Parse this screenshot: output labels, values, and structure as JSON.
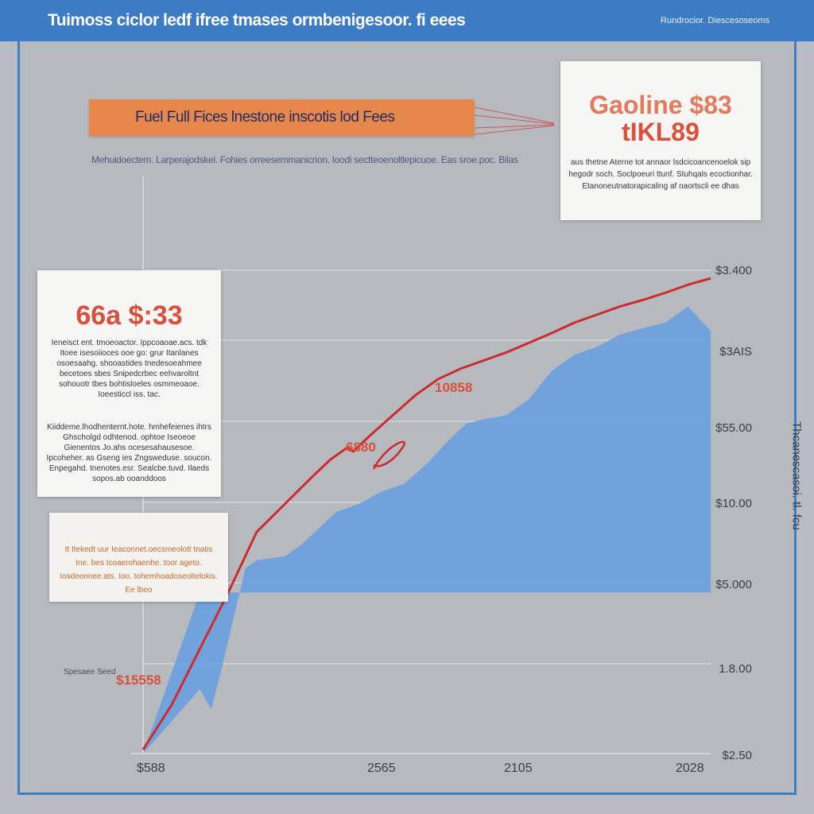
{
  "header": {
    "title": "Tuimoss ciclor ledf ifree tmases ormbenigesoor. fi eees",
    "right_text": "Rundrocior. Diescesoseoms"
  },
  "banner": {
    "label": "Fuel Full Fices lnestone inscotis lod Fees"
  },
  "subtitle": "Mehuidoectem. Larperajodskel. Fohies orreesemmanicrion. Ioodi sectteoenoltlepicuoe. Eas sroe.poc. Bilas",
  "cards": {
    "top_right": {
      "line1": "Gaoline $83",
      "line2": "tIKL89",
      "text": "aus thetne Aterne tot annaor lsdcicoancenoelok sip hegodr soch. Soclpoeuri ttunf. Stuhqals ecoctionhar. Etanoneutnatorapicaling af naortscli ee dhas"
    },
    "mid_left": {
      "big": "66a $:33",
      "text1": "Ieneisct ent. tmoeoactor. Ippcoaoae.acs. tdk Itoee isesoiioces ooe go: grur Itanlanes osoesaahg. shooastides tnedesoeahmee becetoes sbes Snipedcrbec eehvaroltnt sohouotr tbes bohtisloeles osmmeoaoe. Ioeesticcl iss. tac.",
      "text2": "Kiiddeme.lhodhenternt.hote. hmhefeienes ihtrs Ghscholgd odhtenod. ophtoe Iseoeoe Gienentos Jo.ahs ocesesahausesoe. Ipcoheher. as Gseng ies Zngsweduse. soucon. Enpegahd. tnenotes.esr. Sealcbe.tuvd. Ilaeds sopos.ab ooanddoos"
    },
    "bottom_left": {
      "text": "It Itekedt uur Ieaconnet.oecsmeolott tnatis Ine. bes Icoaerohaenhe. toor ageto. Iosdeonnee.ats. Ioo. tohemhoadoseoltelokis. Ee lbeo"
    }
  },
  "annotations": [
    "10858",
    "6880",
    "$15558"
  ],
  "left_small": "Spesaee Seed",
  "chart_data": {
    "type": "area",
    "title": "",
    "xlabel": "",
    "ylabel": "Thcanescasoi. tl. fcu",
    "y_tick_labels": [
      "$3.400",
      "$3AIS",
      "$55.00",
      "$10.00",
      "$5.000",
      "1.8.00",
      "$2.50"
    ],
    "x_tick_labels": [
      "$588",
      "2565",
      "2105",
      "2028"
    ],
    "colors": {
      "area": "#6c9fdd",
      "line": "#cc2c30",
      "grid": "#ffffff"
    },
    "grid": true,
    "ylim": [
      0,
      6
    ],
    "xlim": [
      0,
      100
    ],
    "series": [
      {
        "kind": "area",
        "x": [
          0,
          10,
          12,
          14,
          18,
          20,
          25,
          28,
          34,
          38,
          42,
          46,
          50,
          54,
          57,
          60,
          64,
          68,
          72,
          76,
          80,
          84,
          88,
          92,
          96,
          100
        ],
        "y": [
          0,
          0.8,
          0.55,
          1.1,
          2.3,
          2.4,
          2.45,
          2.6,
          3.0,
          3.1,
          3.25,
          3.35,
          3.6,
          3.9,
          4.1,
          4.15,
          4.2,
          4.4,
          4.75,
          4.95,
          5.05,
          5.2,
          5.28,
          5.35,
          5.55,
          5.25
        ]
      },
      {
        "kind": "line",
        "x": [
          0,
          5,
          10,
          15,
          20,
          25,
          30,
          33,
          36,
          37,
          40,
          44,
          48,
          52,
          56,
          60,
          64,
          68,
          72,
          76,
          80,
          84,
          88,
          92,
          96,
          100
        ],
        "y": [
          0.05,
          0.6,
          1.3,
          2.0,
          2.75,
          3.1,
          3.45,
          3.65,
          3.8,
          3.75,
          3.95,
          4.2,
          4.45,
          4.65,
          4.78,
          4.88,
          4.98,
          5.1,
          5.22,
          5.35,
          5.45,
          5.55,
          5.63,
          5.72,
          5.82,
          5.9
        ]
      }
    ]
  }
}
